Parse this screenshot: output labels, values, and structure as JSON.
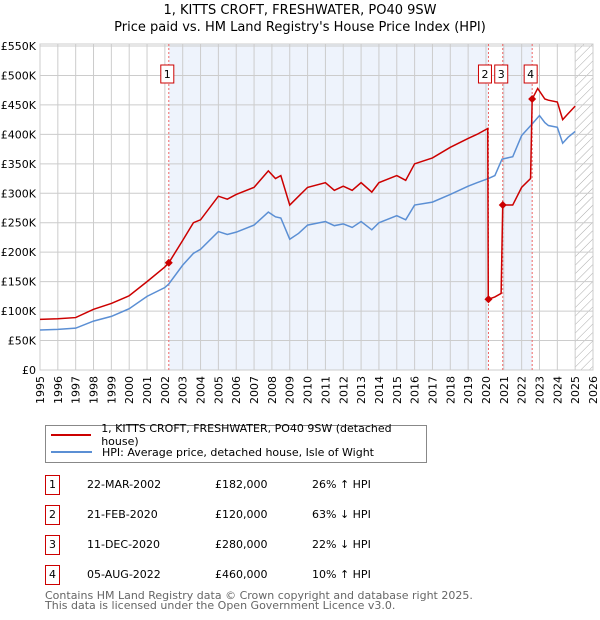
{
  "chart_data": {
    "type": "line",
    "title": "1, KITTS CROFT, FRESHWATER, PO40 9SW",
    "subtitle": "Price paid vs. HM Land Registry's House Price Index (HPI)",
    "xlim": [
      1995,
      2026
    ],
    "ylim": [
      0,
      550000
    ],
    "x_ticks": [
      "1995",
      "1996",
      "1997",
      "1998",
      "1999",
      "2000",
      "2001",
      "2002",
      "2003",
      "2004",
      "2005",
      "2006",
      "2007",
      "2008",
      "2009",
      "2010",
      "2011",
      "2012",
      "2013",
      "2014",
      "2015",
      "2016",
      "2017",
      "2018",
      "2019",
      "2020",
      "2021",
      "2022",
      "2023",
      "2024",
      "2025",
      "2026"
    ],
    "y_ticks": [
      {
        "v": 0,
        "l": "£0"
      },
      {
        "v": 50000,
        "l": "£50K"
      },
      {
        "v": 100000,
        "l": "£100K"
      },
      {
        "v": 150000,
        "l": "£150K"
      },
      {
        "v": 200000,
        "l": "£200K"
      },
      {
        "v": 250000,
        "l": "£250K"
      },
      {
        "v": 300000,
        "l": "£300K"
      },
      {
        "v": 350000,
        "l": "£350K"
      },
      {
        "v": 400000,
        "l": "£400K"
      },
      {
        "v": 450000,
        "l": "£450K"
      },
      {
        "v": 500000,
        "l": "£500K"
      },
      {
        "v": 550000,
        "l": "£550K"
      }
    ],
    "grid": true,
    "forecast_from": 2025,
    "series": [
      {
        "name": "1, KITTS CROFT, FRESHWATER, PO40 9SW (detached house)",
        "color": "#cc0000",
        "x": [
          1995,
          1996,
          1997,
          1998,
          1999,
          2000,
          2001,
          2002,
          2002.22,
          2003,
          2003.6,
          2004,
          2005,
          2005.5,
          2006,
          2007,
          2007.8,
          2008.2,
          2008.5,
          2009,
          2009.5,
          2010,
          2011,
          2011.5,
          2012,
          2012.5,
          2013,
          2013.6,
          2014,
          2015,
          2015.5,
          2016,
          2017,
          2018,
          2019,
          2019.5,
          2020.1,
          2020.13,
          2020.5,
          2020.85,
          2020.94,
          2021.5,
          2022,
          2022.5,
          2022.59,
          2022.9,
          2023.3,
          2023.5,
          2024,
          2024.3,
          2024.6,
          2025
        ],
        "y": [
          86000,
          87000,
          89000,
          103000,
          113000,
          126000,
          150000,
          175000,
          182000,
          220000,
          250000,
          255000,
          295000,
          290000,
          298000,
          310000,
          338000,
          325000,
          330000,
          280000,
          295000,
          310000,
          318000,
          305000,
          312000,
          305000,
          318000,
          302000,
          318000,
          330000,
          322000,
          350000,
          360000,
          378000,
          393000,
          400000,
          410000,
          120000,
          124000,
          130000,
          280000,
          280000,
          310000,
          325000,
          460000,
          478000,
          460000,
          458000,
          455000,
          425000,
          435000,
          448000
        ]
      },
      {
        "name": "HPI: Average price, detached house, Isle of Wight",
        "color": "#5b8fd4",
        "x": [
          1995,
          1996,
          1997,
          1998,
          1999,
          2000,
          2001,
          2002,
          2002.22,
          2003,
          2003.6,
          2004,
          2005,
          2005.5,
          2006,
          2007,
          2007.8,
          2008.2,
          2008.5,
          2009,
          2009.5,
          2010,
          2011,
          2011.5,
          2012,
          2012.5,
          2013,
          2013.6,
          2014,
          2015,
          2015.5,
          2016,
          2017,
          2018,
          2019,
          2019.5,
          2020.13,
          2020.5,
          2020.9,
          2021.5,
          2022,
          2022.6,
          2023,
          2023.3,
          2023.5,
          2024,
          2024.3,
          2024.6,
          2025
        ],
        "y": [
          68000,
          69000,
          71000,
          83000,
          91000,
          104000,
          125000,
          140000,
          146000,
          178000,
          198000,
          205000,
          235000,
          230000,
          234000,
          246000,
          268000,
          260000,
          258000,
          222000,
          232000,
          246000,
          252000,
          245000,
          248000,
          242000,
          252000,
          238000,
          250000,
          262000,
          255000,
          280000,
          285000,
          298000,
          312000,
          318000,
          325000,
          330000,
          358000,
          362000,
          398000,
          418000,
          432000,
          420000,
          415000,
          412000,
          385000,
          395000,
          405000
        ]
      }
    ],
    "sales": [
      {
        "label": "1",
        "x": 2002.22,
        "y": 182000,
        "date": "22-MAR-2002",
        "price": "£182,000",
        "hpi": "26% ↑ HPI"
      },
      {
        "label": "2",
        "x": 2020.14,
        "y": 120000,
        "date": "21-FEB-2020",
        "price": "£120,000",
        "hpi": "63% ↓ HPI"
      },
      {
        "label": "3",
        "x": 2020.94,
        "y": 280000,
        "date": "11-DEC-2020",
        "price": "£280,000",
        "hpi": "22% ↓ HPI"
      },
      {
        "label": "4",
        "x": 2022.59,
        "y": 460000,
        "date": "05-AUG-2022",
        "price": "£460,000",
        "hpi": "10% ↑ HPI"
      }
    ],
    "shaded_ranges": [
      [
        2002.22,
        2020.14
      ],
      [
        2020.94,
        2022.59
      ]
    ]
  },
  "footer": {
    "line1": "Contains HM Land Registry data © Crown copyright and database right 2025.",
    "line2": "This data is licensed under the Open Government Licence v3.0."
  }
}
